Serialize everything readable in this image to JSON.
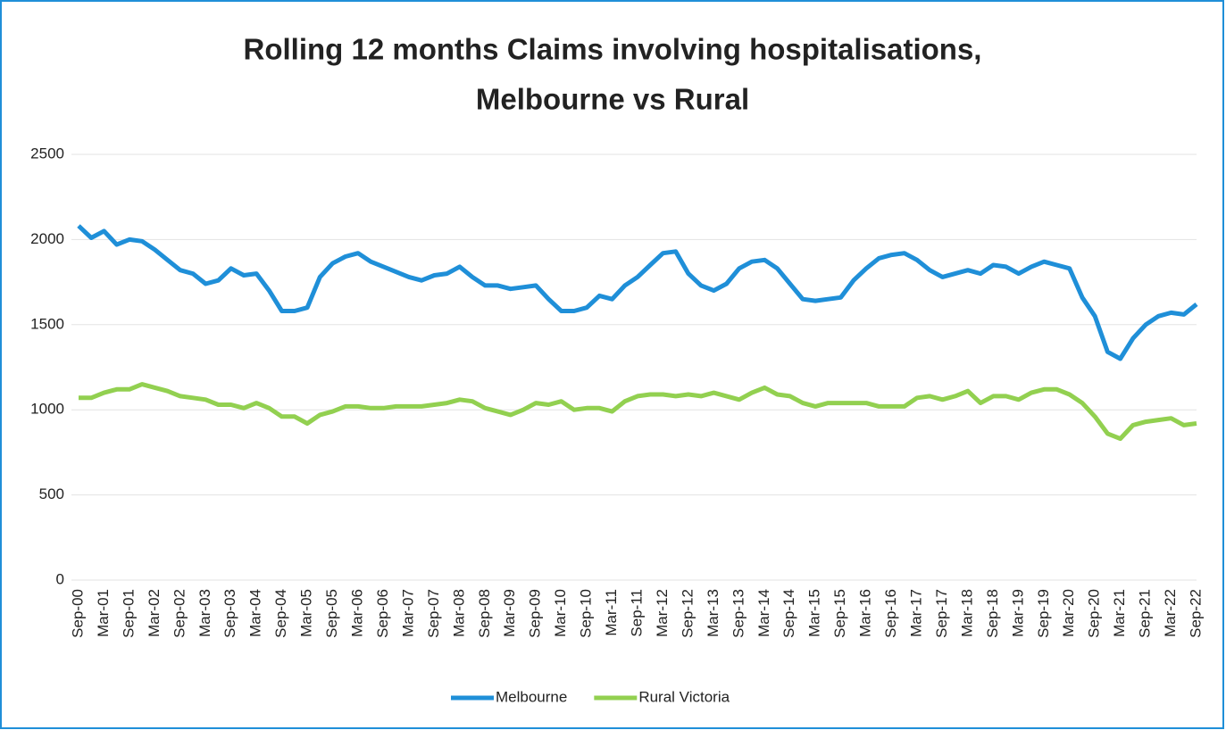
{
  "chart_data": {
    "type": "line",
    "title": "Rolling 12 months Claims involving hospitalisations,",
    "subtitle": "Melbourne vs Rural",
    "categories": [
      "Sep-00",
      null,
      "Mar-01",
      null,
      "Sep-01",
      null,
      "Mar-02",
      null,
      "Sep-02",
      null,
      "Mar-03",
      null,
      "Sep-03",
      null,
      "Mar-04",
      null,
      "Sep-04",
      null,
      "Mar-05",
      null,
      "Sep-05",
      null,
      "Mar-06",
      null,
      "Sep-06",
      null,
      "Mar-07",
      null,
      "Sep-07",
      null,
      "Mar-08",
      null,
      "Sep-08",
      null,
      "Mar-09",
      null,
      "Sep-09",
      null,
      "Mar-10",
      null,
      "Sep-10",
      null,
      "Mar-11",
      null,
      "Sep-11",
      null,
      "Mar-12",
      null,
      "Sep-12",
      null,
      "Mar-13",
      null,
      "Sep-13",
      null,
      "Mar-14",
      null,
      "Sep-14",
      null,
      "Mar-15",
      null,
      "Sep-15",
      null,
      "Mar-16",
      null,
      "Sep-16",
      null,
      "Mar-17",
      null,
      "Sep-17",
      null,
      "Mar-18",
      null,
      "Sep-18",
      null,
      "Mar-19",
      null,
      "Sep-19",
      null,
      "Mar-20",
      null,
      "Sep-20",
      null,
      "Mar-21",
      null,
      "Sep-21",
      null,
      "Mar-22",
      null,
      "Sep-22"
    ],
    "series": [
      {
        "name": "Melbourne",
        "color": "#1f8fd8",
        "values": [
          2080,
          2010,
          2050,
          1970,
          2000,
          1990,
          1940,
          1880,
          1820,
          1800,
          1740,
          1760,
          1830,
          1790,
          1800,
          1700,
          1580,
          1580,
          1600,
          1780,
          1860,
          1900,
          1920,
          1870,
          1840,
          1810,
          1780,
          1760,
          1790,
          1800,
          1840,
          1780,
          1730,
          1730,
          1710,
          1720,
          1730,
          1650,
          1580,
          1580,
          1600,
          1670,
          1650,
          1730,
          1780,
          1850,
          1920,
          1930,
          1800,
          1730,
          1700,
          1740,
          1830,
          1870,
          1880,
          1830,
          1740,
          1650,
          1640,
          1650,
          1660,
          1760,
          1830,
          1890,
          1910,
          1920,
          1880,
          1820,
          1780,
          1800,
          1820,
          1800,
          1850,
          1840,
          1800,
          1840,
          1870,
          1850,
          1830,
          1660,
          1550,
          1340,
          1300,
          1420,
          1500,
          1550,
          1570,
          1560,
          1620
        ]
      },
      {
        "name": "Rural Victoria",
        "color": "#92d050",
        "values": [
          1070,
          1070,
          1100,
          1120,
          1120,
          1150,
          1130,
          1110,
          1080,
          1070,
          1060,
          1030,
          1030,
          1010,
          1040,
          1010,
          960,
          960,
          920,
          970,
          990,
          1020,
          1020,
          1010,
          1010,
          1020,
          1020,
          1020,
          1030,
          1040,
          1060,
          1050,
          1010,
          990,
          970,
          1000,
          1040,
          1030,
          1050,
          1000,
          1010,
          1010,
          990,
          1050,
          1080,
          1090,
          1090,
          1080,
          1090,
          1080,
          1100,
          1080,
          1060,
          1100,
          1130,
          1090,
          1080,
          1040,
          1020,
          1040,
          1040,
          1040,
          1040,
          1020,
          1020,
          1020,
          1070,
          1080,
          1060,
          1080,
          1110,
          1040,
          1080,
          1080,
          1060,
          1100,
          1120,
          1120,
          1090,
          1040,
          960,
          860,
          830,
          910,
          930,
          940,
          950,
          910,
          920
        ]
      }
    ],
    "ylim": [
      0,
      2500
    ],
    "yticks": [
      0,
      500,
      1000,
      1500,
      2000,
      2500
    ],
    "grid": true,
    "legend": "bottom"
  }
}
